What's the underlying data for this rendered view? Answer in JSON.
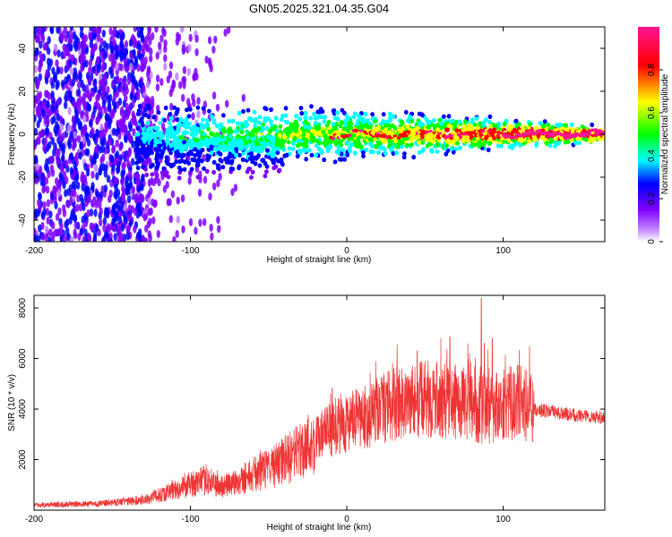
{
  "title": "GN05.2025.321.04.35.G04",
  "chart_data": [
    {
      "type": "heatmap",
      "name": "spectrogram",
      "xlabel": "Height of straight line (km)",
      "ylabel": "Frequency (Hz)",
      "xlim": [
        -200,
        165
      ],
      "ylim": [
        -50,
        50
      ],
      "xticks": [
        -200,
        -100,
        0,
        100
      ],
      "yticks": [
        -40,
        -20,
        0,
        20,
        40
      ],
      "colorbar": {
        "label": "Normalized spectral amplitude",
        "range": [
          0,
          1
        ],
        "ticks": [
          0.0,
          0.2,
          0.4,
          0.6,
          0.8
        ],
        "colors": [
          "#ffffff",
          "#8000ff",
          "#0000ff",
          "#00ffff",
          "#00ff00",
          "#ffff00",
          "#ff0000",
          "#ff1493"
        ]
      },
      "ridge_frequency_hz": 0
    },
    {
      "type": "line",
      "name": "snr",
      "xlabel": "Height of straight line (km)",
      "ylabel": "SNR (10 * v/v)",
      "xlim": [
        -200,
        165
      ],
      "ylim": [
        0,
        8500
      ],
      "xticks": [
        -200,
        -100,
        0,
        100
      ],
      "yticks": [
        2000,
        4000,
        6000,
        8000
      ],
      "color": "#ee3333",
      "envelope": {
        "x": [
          -200,
          -160,
          -130,
          -110,
          -90,
          -80,
          -60,
          -40,
          -25,
          -15,
          -5,
          10,
          30,
          50,
          70,
          80,
          90,
          100,
          110,
          120,
          140,
          165
        ],
        "y": [
          200,
          250,
          400,
          800,
          1200,
          900,
          1400,
          1900,
          2600,
          3000,
          3400,
          3600,
          4200,
          4400,
          4300,
          4100,
          4000,
          4200,
          4300,
          4000,
          3800,
          3650
        ]
      },
      "peaks": [
        {
          "x": 86,
          "y": 8400
        },
        {
          "x": 88,
          "y": 6600
        },
        {
          "x": 93,
          "y": 6800
        },
        {
          "x": 30,
          "y": 5600
        },
        {
          "x": 45,
          "y": 6300
        }
      ]
    }
  ]
}
